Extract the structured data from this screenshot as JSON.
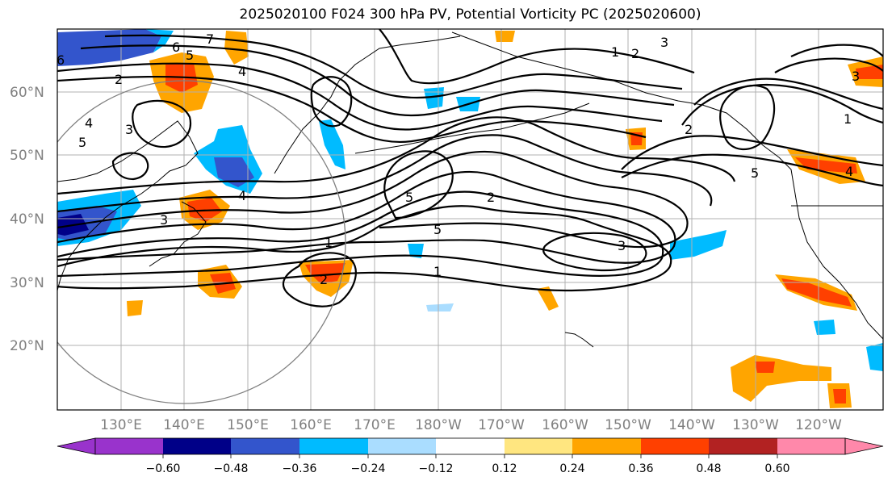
{
  "title": "2025020100 F024 300 hPa PV, Potential Vorticity PC (2025020600)",
  "map": {
    "lat_labels": [
      "60°N",
      "50°N",
      "40°N",
      "30°N",
      "20°N"
    ],
    "lon_labels": [
      "130°E",
      "140°E",
      "150°E",
      "160°E",
      "170°E",
      "180°W",
      "170°W",
      "160°W",
      "150°W",
      "140°W",
      "130°W",
      "120°W"
    ],
    "contour_labels": [
      "7",
      "6",
      "5",
      "4",
      "3",
      "2",
      "1",
      "2",
      "3",
      "4",
      "5",
      "6",
      "4",
      "3",
      "1",
      "2",
      "3",
      "2",
      "5",
      "1",
      "3",
      "5",
      "4",
      "2",
      "5",
      "1"
    ]
  },
  "colorbar": {
    "tick_labels": [
      "−0.60",
      "−0.48",
      "−0.36",
      "−0.24",
      "−0.12",
      "0.12",
      "0.24",
      "0.36",
      "0.48",
      "0.60"
    ],
    "colors": [
      "#9933cc",
      "#000088",
      "#3355cc",
      "#00bbff",
      "#aaddff",
      "#ffffff",
      "#ffe680",
      "#ffa500",
      "#ff4000",
      "#b22222",
      "#ff88aa"
    ]
  }
}
